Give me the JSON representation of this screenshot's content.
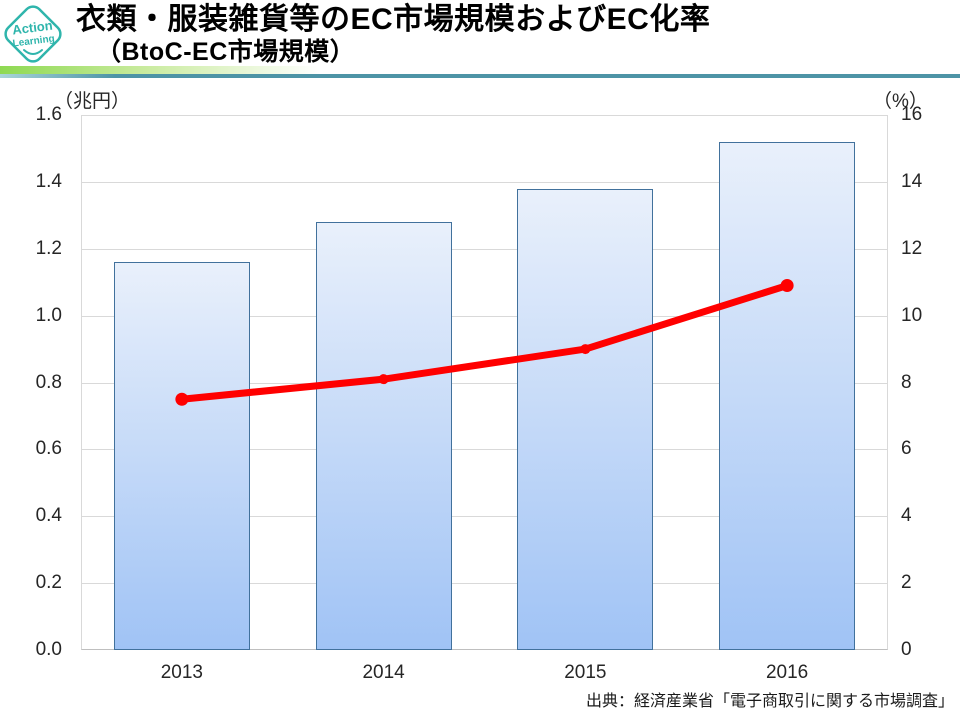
{
  "header": {
    "logo": {
      "line1": "Action",
      "line2": "Learning",
      "color": "#2fb5ac"
    },
    "title": "衣類・服装雑貨等のEC市場規模およびEC化率",
    "subtitle": "（BtoC-EC市場規模）"
  },
  "chart_data": {
    "type": "bar+line",
    "title": "衣類・服装雑貨等のEC市場規模およびEC化率（BtoC-EC市場規模）",
    "categories": [
      "2013",
      "2014",
      "2015",
      "2016"
    ],
    "series": [
      {
        "name": "BtoC-EC市場規模（兆円）",
        "type": "bar",
        "axis": "left",
        "values": [
          1.16,
          1.28,
          1.38,
          1.52
        ],
        "fill_top": "#e9f0fb",
        "fill_bottom": "#a0c3f5",
        "border_color": "#41719c"
      },
      {
        "name": "EC化率（%）",
        "type": "line",
        "axis": "right",
        "values": [
          7.5,
          8.1,
          9.0,
          10.9
        ],
        "color": "#ff0000"
      }
    ],
    "left_axis": {
      "label": "（兆円）",
      "min": 0,
      "max": 1.6,
      "step": 0.2,
      "ticks": [
        "1.6",
        "1.4",
        "1.2",
        "1.0",
        "0.8",
        "0.6",
        "0.4",
        "0.2",
        "0.0"
      ]
    },
    "right_axis": {
      "label": "（%）",
      "min": 0,
      "max": 16,
      "step": 2,
      "ticks": [
        "16",
        "14",
        "12",
        "10",
        "8",
        "6",
        "4",
        "2",
        "0"
      ]
    },
    "grid": true,
    "legend": "none"
  },
  "footer": {
    "source": "出典：経済産業省「電子商取引に関する市場調査」"
  }
}
